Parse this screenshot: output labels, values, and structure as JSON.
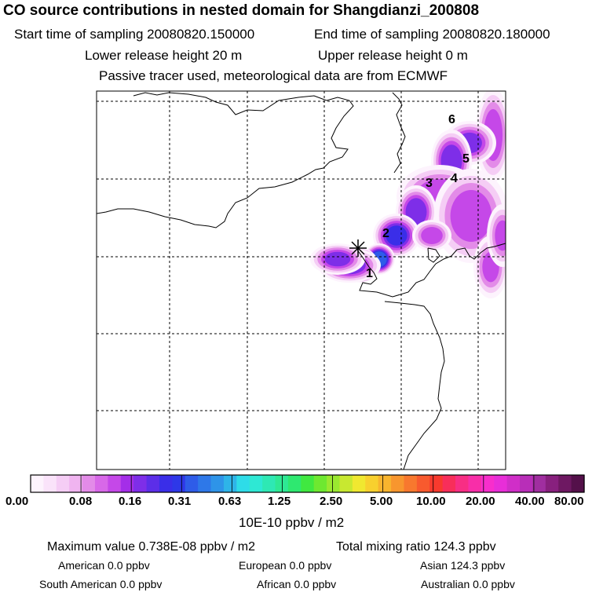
{
  "header": {
    "title": "CO  source contributions in nested domain for Shangdianzi_200808",
    "start_label": "Start time of sampling 20080820.150000",
    "end_label": "End time of sampling 20080820.180000",
    "lower_label": "Lower release height   20 m",
    "upper_label": "Upper release height    0 m",
    "info": "Passive tracer used, meteorological data are from ECMWF"
  },
  "map": {
    "receptor_marker": "asterisk-icon",
    "source_labels": [
      "1",
      "2",
      "3",
      "4",
      "5",
      "6"
    ]
  },
  "colorbar": {
    "tick_labels": [
      "0.00",
      "0.08",
      "0.16",
      "0.31",
      "0.63",
      "1.25",
      "2.50",
      "5.00",
      "10.00",
      "20.00",
      "40.00",
      "80.00"
    ],
    "unit": "10E-10 ppbv / m2",
    "colors": [
      "#fdf3fd",
      "#fae3fa",
      "#f5cdf5",
      "#f0b4f0",
      "#e38be8",
      "#d868e8",
      "#c548e8",
      "#a42ee8",
      "#7e2ee8",
      "#5c2ee8",
      "#3a2ee8",
      "#2e38e8",
      "#2e5ce8",
      "#2e78e8",
      "#2e94e8",
      "#2eb4e8",
      "#2edce8",
      "#2ee8d4",
      "#2ee8b4",
      "#2ee894",
      "#2ee870",
      "#40e840",
      "#6ee830",
      "#9ae830",
      "#c8e830",
      "#f0e830",
      "#f8d02e",
      "#f8b42e",
      "#f8962e",
      "#f8782e",
      "#f85a2e",
      "#f83a2e",
      "#f82e5a",
      "#f82e84",
      "#f82ea8",
      "#f82ecc",
      "#e82ed8",
      "#d02ec8",
      "#b82eb8",
      "#a02ea0",
      "#88207e",
      "#6e1862",
      "#54104a"
    ]
  },
  "stats": {
    "max_value": "Maximum value  0.738E-08 ppbv / m2",
    "total_mixing": "Total mixing ratio      124.3 ppbv",
    "american": "American       0.0 ppbv",
    "european": "European       0.0 ppbv",
    "asian": "Asian     124.3 ppbv",
    "south_american": "South American       0.0 ppbv",
    "african": "African       0.0 ppbv",
    "australian": "Australian       0.0 ppbv"
  }
}
